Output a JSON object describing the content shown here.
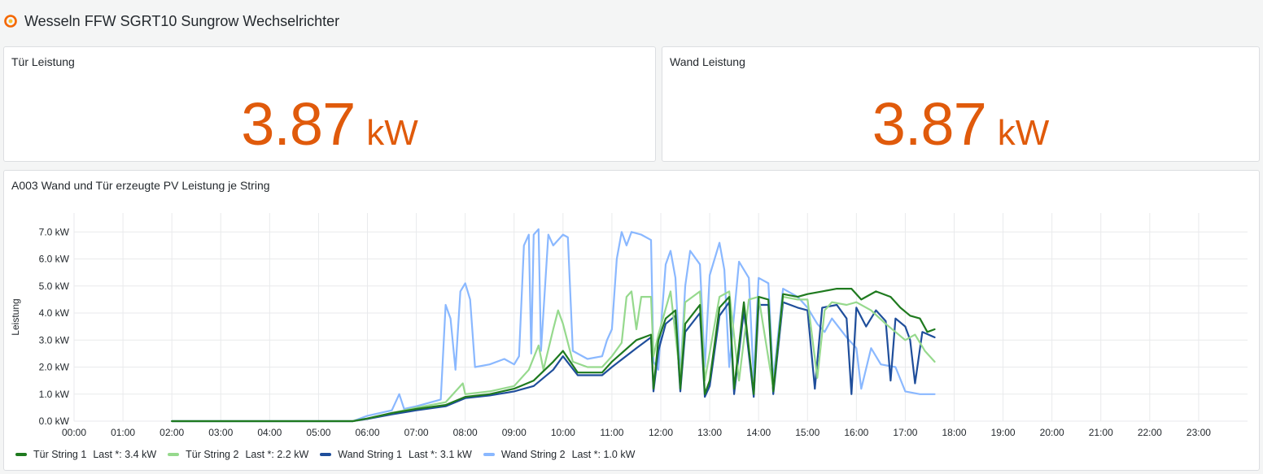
{
  "dashboard": {
    "title": "Wesseln FFW SGRT10 Sungrow Wechselrichter"
  },
  "stat_tuer": {
    "title": "Tür Leistung",
    "value": "3.87",
    "unit": "kW",
    "color": "#e05a0b"
  },
  "stat_wand": {
    "title": "Wand Leistung",
    "value": "3.87",
    "unit": "kW",
    "color": "#e05a0b"
  },
  "timeseries": {
    "title": "A003 Wand und Tür erzeugte PV Leistung je String",
    "legend": [
      {
        "name": "Tür String 1",
        "last": "Last *: 3.4 kW",
        "color": "#1f7a1f"
      },
      {
        "name": "Tür String 2",
        "last": "Last *: 2.2 kW",
        "color": "#96d98d"
      },
      {
        "name": "Wand String 1",
        "last": "Last *: 3.1 kW",
        "color": "#1f4e9b"
      },
      {
        "name": "Wand String 2",
        "last": "Last *: 1.0 kW",
        "color": "#8ab8ff"
      }
    ]
  },
  "chart_data": {
    "type": "line",
    "title": "A003 Wand und Tür erzeugte PV Leistung je String",
    "xlabel": "",
    "ylabel": "Leistung",
    "x_ticks": [
      "00:00",
      "01:00",
      "02:00",
      "03:00",
      "04:00",
      "05:00",
      "06:00",
      "07:00",
      "08:00",
      "09:00",
      "10:00",
      "11:00",
      "12:00",
      "13:00",
      "14:00",
      "15:00",
      "16:00",
      "17:00",
      "18:00",
      "19:00",
      "20:00",
      "21:00",
      "22:00",
      "23:00"
    ],
    "y_ticks": [
      "0.0 kW",
      "1.0 kW",
      "2.0 kW",
      "3.0 kW",
      "4.0 kW",
      "5.0 kW",
      "6.0 kW",
      "7.0 kW"
    ],
    "xlim_hours": [
      0,
      24
    ],
    "ylim_kw": [
      0,
      7.7
    ],
    "grid": true,
    "legend_position": "bottom-left",
    "series": [
      {
        "name": "Tür String 1",
        "color": "#1f7a1f",
        "points": [
          [
            2.0,
            0
          ],
          [
            5.7,
            0
          ],
          [
            6.0,
            0.1
          ],
          [
            6.5,
            0.3
          ],
          [
            7.0,
            0.45
          ],
          [
            7.6,
            0.6
          ],
          [
            8.0,
            0.9
          ],
          [
            8.5,
            1.0
          ],
          [
            9.0,
            1.2
          ],
          [
            9.4,
            1.5
          ],
          [
            9.8,
            2.2
          ],
          [
            10.0,
            2.6
          ],
          [
            10.3,
            1.8
          ],
          [
            10.8,
            1.8
          ],
          [
            11.0,
            2.2
          ],
          [
            11.5,
            3.0
          ],
          [
            11.8,
            3.2
          ],
          [
            11.85,
            1.2
          ],
          [
            11.95,
            3.0
          ],
          [
            12.1,
            3.8
          ],
          [
            12.3,
            4.1
          ],
          [
            12.4,
            1.2
          ],
          [
            12.5,
            3.6
          ],
          [
            12.8,
            4.3
          ],
          [
            12.9,
            1.0
          ],
          [
            13.0,
            1.5
          ],
          [
            13.2,
            4.2
          ],
          [
            13.4,
            4.6
          ],
          [
            13.5,
            1.2
          ],
          [
            13.7,
            4.4
          ],
          [
            13.9,
            1.0
          ],
          [
            14.0,
            4.6
          ],
          [
            14.2,
            4.5
          ],
          [
            14.3,
            1.1
          ],
          [
            14.5,
            4.7
          ],
          [
            14.8,
            4.6
          ],
          [
            15.0,
            4.7
          ],
          [
            15.3,
            4.8
          ],
          [
            15.6,
            4.9
          ],
          [
            15.9,
            4.9
          ],
          [
            16.1,
            4.5
          ],
          [
            16.4,
            4.8
          ],
          [
            16.7,
            4.6
          ],
          [
            16.9,
            4.2
          ],
          [
            17.1,
            3.9
          ],
          [
            17.3,
            3.8
          ],
          [
            17.45,
            3.3
          ],
          [
            17.6,
            3.4
          ]
        ]
      },
      {
        "name": "Tür String 2",
        "color": "#96d98d",
        "points": [
          [
            2.0,
            0
          ],
          [
            5.7,
            0
          ],
          [
            6.0,
            0.1
          ],
          [
            6.5,
            0.3
          ],
          [
            7.0,
            0.5
          ],
          [
            7.6,
            0.7
          ],
          [
            7.95,
            1.4
          ],
          [
            8.0,
            1.0
          ],
          [
            8.5,
            1.1
          ],
          [
            9.0,
            1.3
          ],
          [
            9.3,
            1.9
          ],
          [
            9.5,
            2.8
          ],
          [
            9.6,
            1.9
          ],
          [
            9.8,
            3.4
          ],
          [
            9.9,
            4.1
          ],
          [
            10.0,
            3.6
          ],
          [
            10.2,
            2.2
          ],
          [
            10.5,
            2.0
          ],
          [
            10.8,
            2.0
          ],
          [
            11.0,
            2.4
          ],
          [
            11.2,
            2.9
          ],
          [
            11.3,
            4.6
          ],
          [
            11.4,
            4.8
          ],
          [
            11.5,
            3.4
          ],
          [
            11.6,
            4.6
          ],
          [
            11.8,
            4.6
          ],
          [
            11.85,
            2.4
          ],
          [
            11.95,
            3.2
          ],
          [
            12.2,
            4.8
          ],
          [
            12.4,
            1.6
          ],
          [
            12.5,
            4.4
          ],
          [
            12.8,
            4.8
          ],
          [
            12.9,
            1.5
          ],
          [
            13.2,
            4.6
          ],
          [
            13.4,
            4.8
          ],
          [
            13.6,
            1.5
          ],
          [
            13.8,
            4.5
          ],
          [
            14.0,
            4.6
          ],
          [
            14.3,
            1.2
          ],
          [
            14.5,
            4.6
          ],
          [
            14.8,
            4.5
          ],
          [
            15.0,
            4.5
          ],
          [
            15.2,
            1.6
          ],
          [
            15.35,
            4.1
          ],
          [
            15.5,
            4.4
          ],
          [
            15.8,
            4.3
          ],
          [
            16.0,
            4.4
          ],
          [
            16.3,
            4.1
          ],
          [
            16.6,
            3.6
          ],
          [
            16.8,
            3.3
          ],
          [
            17.0,
            3.0
          ],
          [
            17.2,
            3.2
          ],
          [
            17.4,
            2.6
          ],
          [
            17.6,
            2.2
          ]
        ]
      },
      {
        "name": "Wand String 1",
        "color": "#1f4e9b",
        "points": [
          [
            2.0,
            0
          ],
          [
            5.7,
            0
          ],
          [
            6.0,
            0.08
          ],
          [
            6.5,
            0.25
          ],
          [
            7.0,
            0.4
          ],
          [
            7.6,
            0.55
          ],
          [
            8.0,
            0.85
          ],
          [
            8.5,
            0.95
          ],
          [
            9.0,
            1.1
          ],
          [
            9.4,
            1.3
          ],
          [
            9.8,
            1.9
          ],
          [
            10.0,
            2.4
          ],
          [
            10.3,
            1.7
          ],
          [
            10.8,
            1.7
          ],
          [
            11.0,
            2.0
          ],
          [
            11.5,
            2.7
          ],
          [
            11.8,
            3.1
          ],
          [
            11.85,
            1.1
          ],
          [
            11.95,
            2.6
          ],
          [
            12.1,
            3.6
          ],
          [
            12.3,
            3.9
          ],
          [
            12.4,
            1.1
          ],
          [
            12.5,
            3.3
          ],
          [
            12.8,
            4.0
          ],
          [
            12.9,
            0.9
          ],
          [
            13.0,
            1.3
          ],
          [
            13.2,
            3.9
          ],
          [
            13.4,
            4.4
          ],
          [
            13.5,
            1.0
          ],
          [
            13.7,
            4.1
          ],
          [
            13.9,
            0.9
          ],
          [
            14.0,
            4.3
          ],
          [
            14.2,
            4.3
          ],
          [
            14.3,
            1.0
          ],
          [
            14.5,
            4.4
          ],
          [
            14.8,
            4.2
          ],
          [
            15.0,
            4.1
          ],
          [
            15.15,
            1.2
          ],
          [
            15.3,
            4.2
          ],
          [
            15.6,
            4.3
          ],
          [
            15.8,
            3.8
          ],
          [
            15.9,
            1.0
          ],
          [
            16.0,
            4.2
          ],
          [
            16.2,
            3.5
          ],
          [
            16.4,
            4.1
          ],
          [
            16.6,
            3.7
          ],
          [
            16.7,
            1.5
          ],
          [
            16.8,
            3.8
          ],
          [
            17.0,
            3.5
          ],
          [
            17.1,
            3.0
          ],
          [
            17.2,
            1.4
          ],
          [
            17.35,
            3.3
          ],
          [
            17.6,
            3.1
          ]
        ]
      },
      {
        "name": "Wand String 2",
        "color": "#8ab8ff",
        "points": [
          [
            2.0,
            0
          ],
          [
            5.7,
            0
          ],
          [
            6.0,
            0.2
          ],
          [
            6.5,
            0.4
          ],
          [
            6.65,
            1.0
          ],
          [
            6.75,
            0.45
          ],
          [
            7.0,
            0.55
          ],
          [
            7.5,
            0.8
          ],
          [
            7.6,
            4.3
          ],
          [
            7.7,
            3.8
          ],
          [
            7.8,
            1.9
          ],
          [
            7.9,
            4.8
          ],
          [
            8.0,
            5.1
          ],
          [
            8.1,
            4.5
          ],
          [
            8.2,
            2.0
          ],
          [
            8.5,
            2.1
          ],
          [
            8.8,
            2.3
          ],
          [
            9.0,
            2.1
          ],
          [
            9.1,
            2.4
          ],
          [
            9.2,
            6.5
          ],
          [
            9.3,
            6.9
          ],
          [
            9.35,
            2.5
          ],
          [
            9.4,
            6.9
          ],
          [
            9.5,
            7.1
          ],
          [
            9.55,
            2.6
          ],
          [
            9.7,
            6.9
          ],
          [
            9.8,
            6.5
          ],
          [
            10.0,
            6.9
          ],
          [
            10.1,
            6.8
          ],
          [
            10.2,
            2.6
          ],
          [
            10.5,
            2.3
          ],
          [
            10.8,
            2.4
          ],
          [
            10.9,
            3.0
          ],
          [
            11.0,
            3.4
          ],
          [
            11.1,
            6.0
          ],
          [
            11.2,
            7.0
          ],
          [
            11.3,
            6.5
          ],
          [
            11.4,
            7.0
          ],
          [
            11.6,
            6.9
          ],
          [
            11.8,
            6.7
          ],
          [
            11.85,
            2.2
          ],
          [
            11.95,
            1.9
          ],
          [
            12.0,
            3.4
          ],
          [
            12.1,
            5.8
          ],
          [
            12.2,
            6.3
          ],
          [
            12.3,
            5.3
          ],
          [
            12.4,
            1.6
          ],
          [
            12.5,
            5.0
          ],
          [
            12.6,
            6.3
          ],
          [
            12.8,
            5.8
          ],
          [
            12.9,
            2.0
          ],
          [
            13.0,
            5.4
          ],
          [
            13.2,
            6.6
          ],
          [
            13.3,
            5.6
          ],
          [
            13.4,
            2.0
          ],
          [
            13.6,
            5.9
          ],
          [
            13.8,
            5.3
          ],
          [
            13.9,
            1.5
          ],
          [
            14.0,
            5.3
          ],
          [
            14.2,
            5.1
          ],
          [
            14.3,
            1.5
          ],
          [
            14.5,
            4.9
          ],
          [
            14.8,
            4.6
          ],
          [
            15.0,
            4.2
          ],
          [
            15.2,
            3.6
          ],
          [
            15.35,
            3.3
          ],
          [
            15.5,
            3.8
          ],
          [
            15.8,
            3.1
          ],
          [
            16.0,
            2.7
          ],
          [
            16.1,
            1.2
          ],
          [
            16.3,
            2.7
          ],
          [
            16.5,
            2.1
          ],
          [
            16.8,
            2.0
          ],
          [
            17.0,
            1.1
          ],
          [
            17.3,
            1.0
          ],
          [
            17.6,
            1.0
          ]
        ]
      }
    ]
  }
}
